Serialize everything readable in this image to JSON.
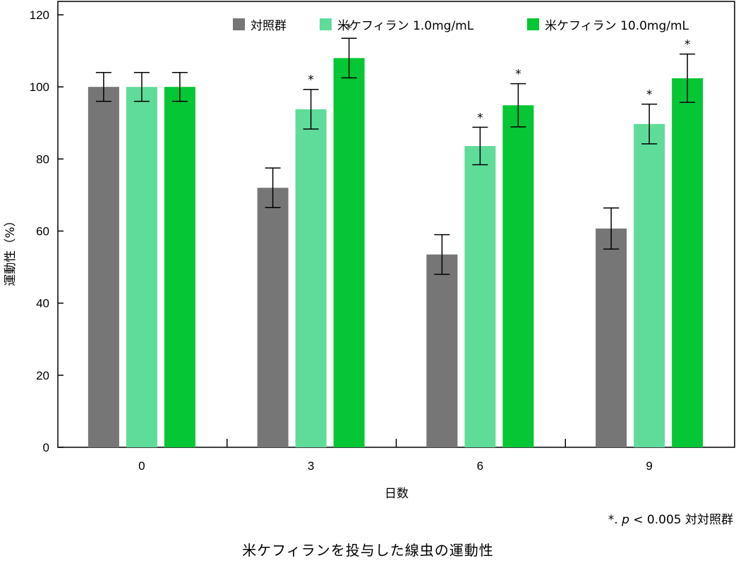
{
  "chart_data": {
    "type": "bar",
    "categories": [
      "0",
      "3",
      "6",
      "9"
    ],
    "xlabel": "日数",
    "ylabel": "運動性（%）",
    "ylim": [
      0,
      120
    ],
    "yticks": [
      0,
      20,
      40,
      60,
      80,
      100,
      120
    ],
    "grid": false,
    "legend_position": "top-right",
    "series": [
      {
        "name": "対照群",
        "color": "#767676",
        "values": [
          100,
          72,
          53.5,
          60.7
        ],
        "errors": [
          4,
          5.5,
          5.5,
          5.7
        ],
        "significant": [
          false,
          false,
          false,
          false
        ]
      },
      {
        "name": "米ケフィラン 1.0mg/mL",
        "color": "#5fdc9a",
        "values": [
          100,
          93.8,
          83.6,
          89.7
        ],
        "errors": [
          4,
          5.5,
          5.2,
          5.5
        ],
        "significant": [
          false,
          true,
          true,
          true
        ]
      },
      {
        "name": "米ケフィラン 10.0mg/mL",
        "color": "#05c634",
        "values": [
          100,
          108,
          94.9,
          102.4
        ],
        "errors": [
          4,
          5.5,
          6,
          6.7
        ],
        "significant": [
          false,
          true,
          true,
          true
        ]
      }
    ],
    "significance_marker": "*"
  },
  "footnote": {
    "star": "*.",
    "p": "p",
    "text": " < 0.005 対対照群"
  },
  "caption": "米ケフィランを投与した線虫の運動性"
}
